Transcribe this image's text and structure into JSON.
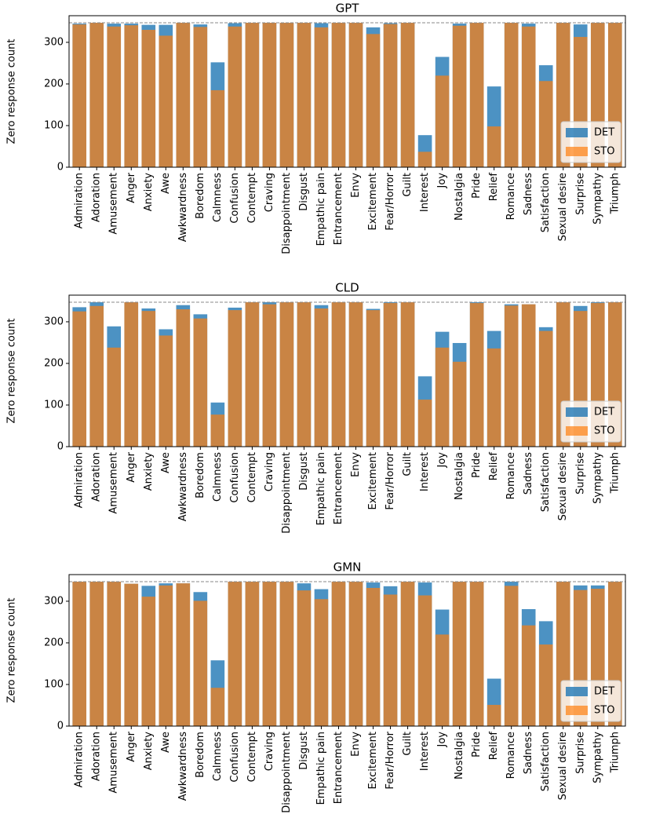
{
  "chart_data": [
    {
      "type": "bar",
      "title": "GPT",
      "ylabel": "Zero response count",
      "categories": [
        "Admiration",
        "Adoration",
        "Amusement",
        "Anger",
        "Anxiety",
        "Awe",
        "Awkwardness",
        "Boredom",
        "Calmness",
        "Confusion",
        "Contempt",
        "Craving",
        "Disappointment",
        "Disgust",
        "Empathic pain",
        "Entrancement",
        "Envy",
        "Excitement",
        "Fear/Horror",
        "Guilt",
        "Interest",
        "Joy",
        "Nostalgia",
        "Pride",
        "Relief",
        "Romance",
        "Sadness",
        "Satisfaction",
        "Sexual desire",
        "Surprise",
        "Sympathy",
        "Triumph"
      ],
      "series": [
        {
          "name": "DET",
          "color": "#1f77b4",
          "alpha": 0.8,
          "values": [
            345,
            347,
            345,
            345,
            342,
            342,
            347,
            343,
            252,
            346,
            347,
            347,
            347,
            347,
            346,
            347,
            347,
            336,
            346,
            347,
            77,
            265,
            345,
            347,
            194,
            347,
            345,
            245,
            347,
            343,
            347,
            347
          ]
        },
        {
          "name": "STO",
          "color": "#ff7f0e",
          "alpha": 0.7,
          "values": [
            343,
            347,
            338,
            341,
            330,
            316,
            347,
            337,
            185,
            338,
            347,
            347,
            347,
            347,
            336,
            347,
            347,
            320,
            344,
            347,
            37,
            220,
            340,
            347,
            98,
            347,
            338,
            207,
            347,
            313,
            347,
            347
          ]
        }
      ],
      "reference_line": 347,
      "ylim": [
        0,
        364
      ],
      "yticks": [
        0,
        100,
        200,
        300
      ],
      "legend": "lower right"
    },
    {
      "type": "bar",
      "title": "CLD",
      "ylabel": "Zero response count",
      "categories": [
        "Admiration",
        "Adoration",
        "Amusement",
        "Anger",
        "Anxiety",
        "Awe",
        "Awkwardness",
        "Boredom",
        "Calmness",
        "Confusion",
        "Contempt",
        "Craving",
        "Disappointment",
        "Disgust",
        "Empathic pain",
        "Entrancement",
        "Envy",
        "Excitement",
        "Fear/Horror",
        "Guilt",
        "Interest",
        "Joy",
        "Nostalgia",
        "Pride",
        "Relief",
        "Romance",
        "Sadness",
        "Satisfaction",
        "Sexual desire",
        "Surprise",
        "Sympathy",
        "Triumph"
      ],
      "series": [
        {
          "name": "DET",
          "color": "#1f77b4",
          "alpha": 0.8,
          "values": [
            335,
            347,
            289,
            347,
            332,
            282,
            340,
            318,
            106,
            334,
            347,
            347,
            347,
            347,
            340,
            347,
            347,
            331,
            347,
            347,
            169,
            276,
            249,
            347,
            278,
            342,
            342,
            287,
            347,
            338,
            347,
            347
          ]
        },
        {
          "name": "STO",
          "color": "#ff7f0e",
          "alpha": 0.7,
          "values": [
            325,
            338,
            238,
            347,
            326,
            267,
            330,
            308,
            77,
            328,
            347,
            342,
            347,
            347,
            332,
            347,
            347,
            328,
            345,
            347,
            113,
            238,
            204,
            345,
            236,
            339,
            342,
            278,
            347,
            326,
            345,
            347
          ]
        }
      ],
      "reference_line": 347,
      "ylim": [
        0,
        364
      ],
      "yticks": [
        0,
        100,
        200,
        300
      ],
      "legend": "lower right"
    },
    {
      "type": "bar",
      "title": "GMN",
      "ylabel": "Zero response count",
      "categories": [
        "Admiration",
        "Adoration",
        "Amusement",
        "Anger",
        "Anxiety",
        "Awe",
        "Awkwardness",
        "Boredom",
        "Calmness",
        "Confusion",
        "Contempt",
        "Craving",
        "Disappointment",
        "Disgust",
        "Empathic pain",
        "Entrancement",
        "Envy",
        "Excitement",
        "Fear/Horror",
        "Guilt",
        "Interest",
        "Joy",
        "Nostalgia",
        "Pride",
        "Relief",
        "Romance",
        "Sadness",
        "Satisfaction",
        "Sexual desire",
        "Surprise",
        "Sympathy",
        "Triumph"
      ],
      "series": [
        {
          "name": "DET",
          "color": "#1f77b4",
          "alpha": 0.8,
          "values": [
            347,
            347,
            347,
            342,
            337,
            343,
            343,
            322,
            158,
            347,
            347,
            347,
            347,
            343,
            329,
            347,
            347,
            345,
            336,
            347,
            345,
            280,
            347,
            347,
            114,
            347,
            281,
            252,
            347,
            338,
            338,
            347
          ]
        },
        {
          "name": "STO",
          "color": "#ff7f0e",
          "alpha": 0.7,
          "values": [
            347,
            347,
            347,
            342,
            311,
            338,
            343,
            301,
            92,
            347,
            347,
            347,
            347,
            326,
            305,
            347,
            347,
            332,
            316,
            347,
            314,
            220,
            347,
            347,
            51,
            337,
            242,
            196,
            347,
            327,
            330,
            347
          ]
        }
      ],
      "reference_line": 347,
      "ylim": [
        0,
        364
      ],
      "yticks": [
        0,
        100,
        200,
        300
      ],
      "legend": "lower right"
    }
  ]
}
